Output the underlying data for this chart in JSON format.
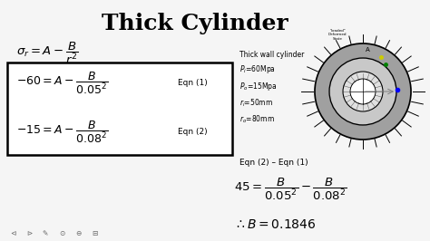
{
  "title": "Thick Cylinder",
  "title_fontsize": 18,
  "background_color": "#f5f5f5",
  "text_color": "#000000",
  "eq1_label": "Eqn (1)",
  "eq2_label": "Eqn (2)",
  "eqn_diff_label": "Eqn (2) – Eqn (1)",
  "cylinder_info": "Thick wall cylinder\n$P_i$=60Mpa\n$P_o$=15Mpa\n$r_i$=50mm\n$r_o$=80mm",
  "loaded_label": "\"loaded\"\nDeformed\nState"
}
